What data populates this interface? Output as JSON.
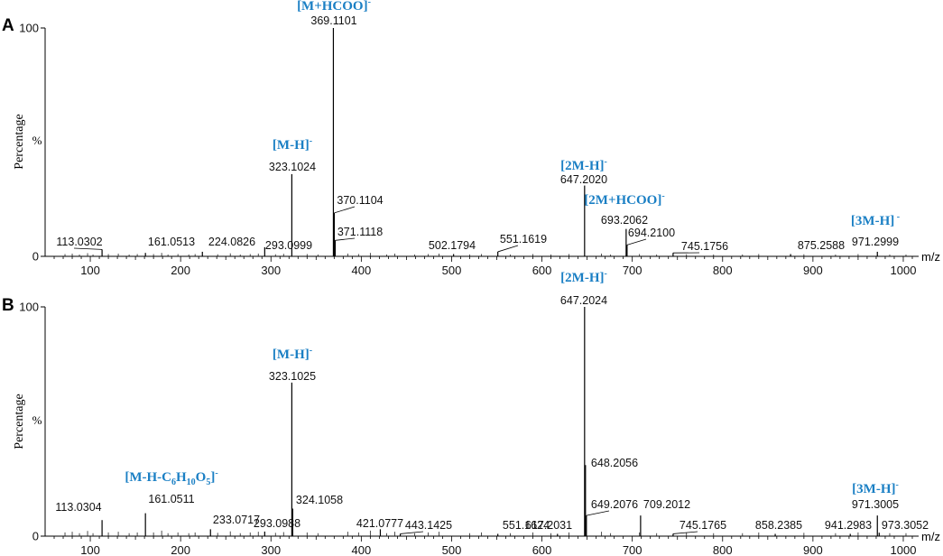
{
  "chart_data": [
    {
      "type": "bar",
      "panel_label": "A",
      "ylabel": "Percentage",
      "y_percent_label": "%",
      "xlabel": "m/z",
      "xlim": [
        50,
        1020
      ],
      "ylim": [
        0,
        100
      ],
      "x_ticks": [
        100,
        200,
        300,
        400,
        500,
        600,
        700,
        800,
        900,
        1000
      ],
      "y_ticks": [
        0,
        100
      ],
      "peaks": [
        {
          "x": 113.0302,
          "y": 3,
          "label": "113.0302"
        },
        {
          "x": 161.0513,
          "y": 1.5,
          "label": "161.0513"
        },
        {
          "x": 224.0826,
          "y": 2,
          "label": "224.0826"
        },
        {
          "x": 293.0999,
          "y": 4,
          "label": "293.0999"
        },
        {
          "x": 323.1024,
          "y": 36,
          "label": "323.1024",
          "ion": "[M-H]",
          "ion_sup": "-"
        },
        {
          "x": 369.1101,
          "y": 100,
          "label": "369.1101",
          "ion": "[M+HCOO]",
          "ion_sup": "-"
        },
        {
          "x": 370.1104,
          "y": 19,
          "label": "370.1104"
        },
        {
          "x": 371.1118,
          "y": 7,
          "label": "371.1118"
        },
        {
          "x": 502.1794,
          "y": 1,
          "label": "502.1794"
        },
        {
          "x": 551.1619,
          "y": 2,
          "label": "551.1619"
        },
        {
          "x": 647.202,
          "y": 31,
          "label": "647.2020",
          "ion": "[2M-H]",
          "ion_sup": "-"
        },
        {
          "x": 693.2062,
          "y": 12,
          "label": "693.2062",
          "ion": "[2M+HCOO]",
          "ion_sup": "-"
        },
        {
          "x": 694.21,
          "y": 5,
          "label": "694.2100"
        },
        {
          "x": 745.1756,
          "y": 1.5,
          "label": "745.1756"
        },
        {
          "x": 875.2588,
          "y": 1,
          "label": "875.2588"
        },
        {
          "x": 971.2999,
          "y": 2,
          "label": "971.2999",
          "ion": "[3M-H]",
          "ion_sup": " -"
        }
      ]
    },
    {
      "type": "bar",
      "panel_label": "B",
      "ylabel": "Percentage",
      "y_percent_label": "%",
      "xlabel": "m/z",
      "xlim": [
        50,
        1020
      ],
      "ylim": [
        0,
        100
      ],
      "x_ticks": [
        100,
        200,
        300,
        400,
        500,
        600,
        700,
        800,
        900,
        1000
      ],
      "y_ticks": [
        0,
        100
      ],
      "peaks": [
        {
          "x": 113.0304,
          "y": 7,
          "label": "113.0304"
        },
        {
          "x": 161.0511,
          "y": 10,
          "label": "161.0511",
          "ion": "[M-H-C6H10O5]",
          "ion_sup": "-"
        },
        {
          "x": 233.0717,
          "y": 3,
          "label": "233.0717"
        },
        {
          "x": 293.0988,
          "y": 2,
          "label": "293.0988"
        },
        {
          "x": 323.1025,
          "y": 67,
          "label": "323.1025",
          "ion": "[M-H]",
          "ion_sup": "-"
        },
        {
          "x": 324.1058,
          "y": 12,
          "label": "324.1058"
        },
        {
          "x": 421.0777,
          "y": 3,
          "label": "421.0777"
        },
        {
          "x": 443.1425,
          "y": 1,
          "label": "443.1425"
        },
        {
          "x": 551.1624,
          "y": 1,
          "label": "551.1624"
        },
        {
          "x": 617.2031,
          "y": 1,
          "label": "617.2031"
        },
        {
          "x": 647.2024,
          "y": 100,
          "label": "647.2024",
          "ion": "[2M-H]",
          "ion_sup": "-"
        },
        {
          "x": 648.2056,
          "y": 31,
          "label": "648.2056"
        },
        {
          "x": 649.2076,
          "y": 9,
          "label": "649.2076"
        },
        {
          "x": 709.2012,
          "y": 9,
          "label": "709.2012"
        },
        {
          "x": 745.1765,
          "y": 1,
          "label": "745.1765"
        },
        {
          "x": 858.2385,
          "y": 1,
          "label": "858.2385"
        },
        {
          "x": 941.2983,
          "y": 1,
          "label": "941.2983"
        },
        {
          "x": 971.3005,
          "y": 9,
          "label": "971.3005",
          "ion": "[3M-H]",
          "ion_sup": "-"
        },
        {
          "x": 973.3052,
          "y": 1.5,
          "label": "973.3052"
        }
      ]
    }
  ],
  "ion_subscript_note": "C6H10O5 rendered with subscripts 6, 10, 5"
}
